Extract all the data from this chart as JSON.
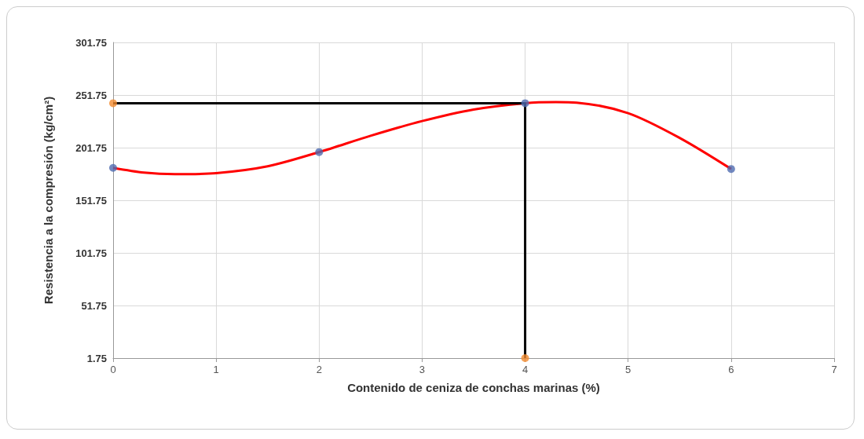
{
  "chart_data": {
    "type": "scatter",
    "xlabel": "Contenido de ceniza de conchas marinas (%)",
    "ylabel": "Resistencia a la compresión (kg/cm²)",
    "xlim": [
      0,
      7
    ],
    "xticks": [
      0,
      1,
      2,
      3,
      4,
      5,
      6,
      7
    ],
    "ylim": [
      1.75,
      301.75
    ],
    "yticks": [
      1.75,
      51.75,
      101.75,
      151.75,
      201.75,
      251.75,
      301.75
    ],
    "grid": true,
    "marker": "circle",
    "series": [
      {
        "type": "line",
        "color": "#ff0000",
        "marker": "none",
        "x": [
          0,
          0.3,
          0.6,
          1,
          1.5,
          2,
          2.5,
          3,
          3.5,
          4,
          4.3,
          4.5,
          5,
          5.5,
          6
        ],
        "values": [
          182.5,
          178,
          176.5,
          177.5,
          184,
          197.5,
          213,
          227,
          238,
          244,
          245,
          244.5,
          234.5,
          211,
          181.5
        ]
      },
      {
        "type": "line",
        "color": "#000000",
        "marker": "none",
        "x": [
          0,
          4,
          4
        ],
        "values": [
          244,
          244,
          1.75
        ]
      },
      {
        "color": "#4f6bb0",
        "x": [
          0,
          2,
          4,
          6
        ],
        "values": [
          182.5,
          197.5,
          244,
          181.5
        ]
      },
      {
        "color": "#f28b30",
        "x": [
          0,
          4
        ],
        "values": [
          244,
          1.75
        ]
      }
    ]
  }
}
